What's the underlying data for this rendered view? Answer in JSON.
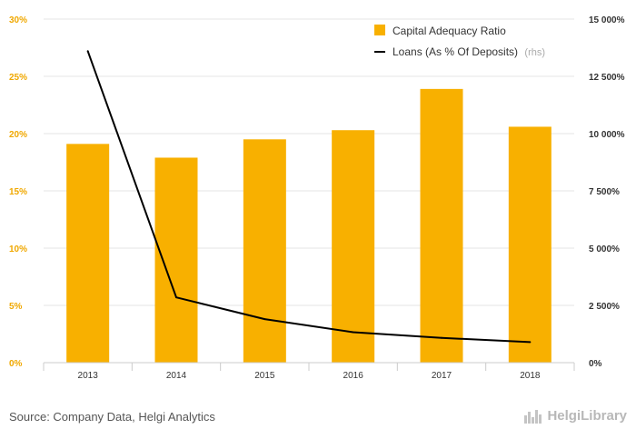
{
  "chart_data": {
    "type": "bar+line",
    "categories": [
      "2013",
      "2014",
      "2015",
      "2016",
      "2017",
      "2018"
    ],
    "series": [
      {
        "name": "Capital Adequacy Ratio",
        "type": "bar",
        "axis": "left",
        "color": "#f8b000",
        "values": [
          19.1,
          17.9,
          19.5,
          20.3,
          23.9,
          20.6
        ]
      },
      {
        "name": "Loans (As % Of Deposits)",
        "name_suffix": "(rhs)",
        "type": "line",
        "axis": "right",
        "color": "#000000",
        "values": [
          13600,
          2850,
          1900,
          1330,
          1080,
          900
        ]
      }
    ],
    "y_left": {
      "ylim": [
        0,
        30
      ],
      "ticks": [
        0,
        5,
        10,
        15,
        20,
        25,
        30
      ],
      "tick_labels": [
        "0%",
        "5%",
        "10%",
        "15%",
        "20%",
        "25%",
        "30%"
      ]
    },
    "y_right": {
      "ylim": [
        0,
        15000
      ],
      "ticks": [
        0,
        2500,
        5000,
        7500,
        10000,
        12500,
        15000
      ],
      "tick_labels": [
        "0%",
        "2 500%",
        "5 000%",
        "7 500%",
        "10 000%",
        "12 500%",
        "15 000%"
      ]
    },
    "grid": "horizontal",
    "legend_position": "top-right"
  },
  "footer": {
    "source": "Source: Company Data, Helgi Analytics",
    "logo_text": "HelgiLibrary"
  },
  "colors": {
    "bar": "#f8b000",
    "line": "#000000",
    "grid": "#e6e6e6",
    "left_tick": "#f0a800"
  },
  "icons": {
    "logo": "city-skyline-icon"
  }
}
